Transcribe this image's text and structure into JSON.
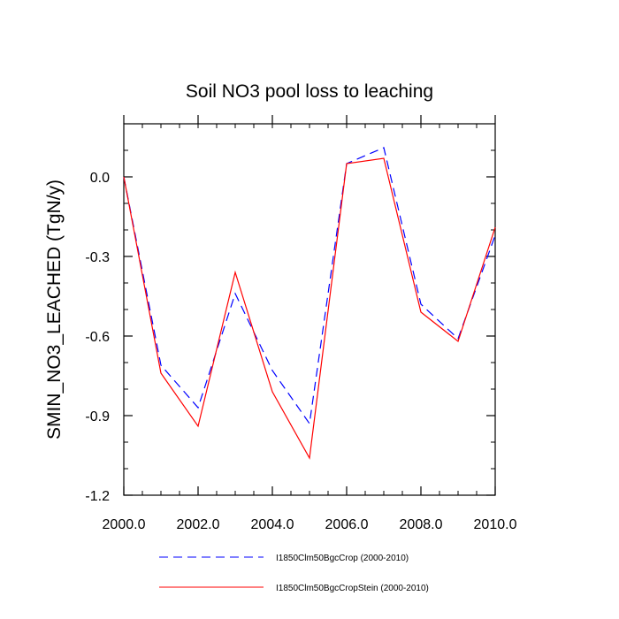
{
  "chart_data": {
    "type": "line",
    "title": "Soil NO3 pool loss to leaching",
    "ylabel": "SMIN_NO3_LEACHED  (TgN/y)",
    "xlabel": "",
    "xlim": [
      2000,
      2010
    ],
    "ylim": [
      -1.2,
      0.2
    ],
    "x_ticks": [
      2000,
      2002,
      2004,
      2006,
      2008,
      2010
    ],
    "x_tick_labels": [
      "2000.0",
      "2002.0",
      "2004.0",
      "2006.0",
      "2008.0",
      "2010.0"
    ],
    "y_ticks": [
      0.0,
      -0.3,
      -0.6,
      -0.9,
      -1.2
    ],
    "y_tick_labels": [
      "0.0",
      "-0.3",
      "-0.6",
      "-0.9",
      "-1.2"
    ],
    "grid": false,
    "legend_placement": "bottom",
    "x": [
      2000,
      2001,
      2002,
      2003,
      2004,
      2005,
      2006,
      2007,
      2008,
      2009,
      2010
    ],
    "series": [
      {
        "name": "I1850Clm50BgcCrop (2000-2010)",
        "color": "#0000ff",
        "style": "dashed",
        "values": [
          0.0,
          -0.71,
          -0.87,
          -0.44,
          -0.73,
          -0.93,
          0.05,
          0.11,
          -0.48,
          -0.61,
          -0.22
        ]
      },
      {
        "name": "I1850Clm50BgcCropStein (2000-2010)",
        "color": "#ff0000",
        "style": "solid",
        "values": [
          0.0,
          -0.74,
          -0.94,
          -0.36,
          -0.81,
          -1.06,
          0.05,
          0.07,
          -0.51,
          -0.62,
          -0.19
        ]
      }
    ]
  }
}
